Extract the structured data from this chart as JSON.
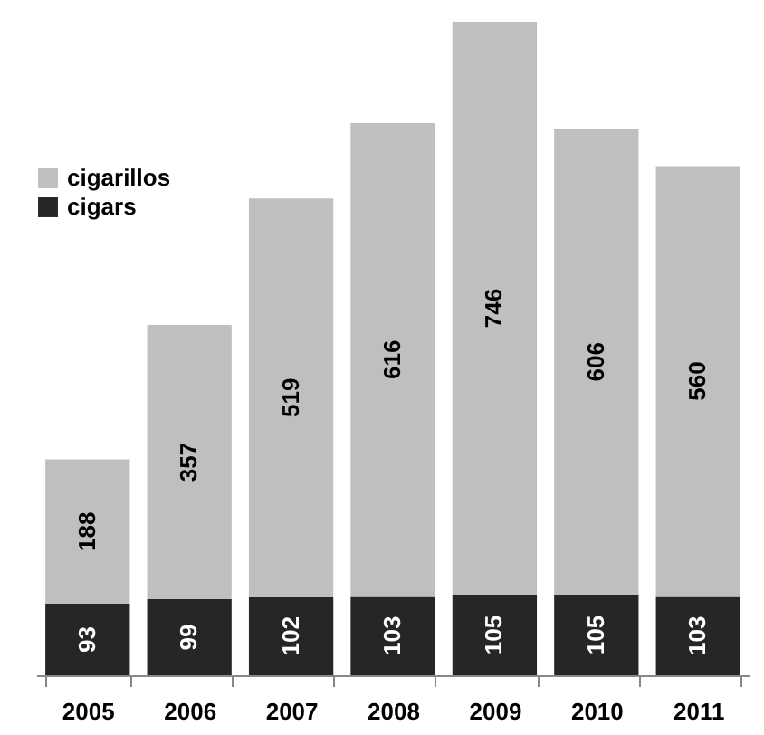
{
  "chart_data": {
    "type": "bar",
    "stacked": true,
    "data_labels": true,
    "legend": "top left",
    "categories": [
      "2005",
      "2006",
      "2007",
      "2008",
      "2009",
      "2010",
      "2011"
    ],
    "series": [
      {
        "name": "cigars",
        "color": "#262626",
        "values": [
          93,
          99,
          102,
          103,
          105,
          105,
          103
        ]
      },
      {
        "name": "cigarillos",
        "color": "#bfbfbf",
        "values": [
          188,
          357,
          519,
          616,
          746,
          606,
          560
        ]
      }
    ]
  }
}
